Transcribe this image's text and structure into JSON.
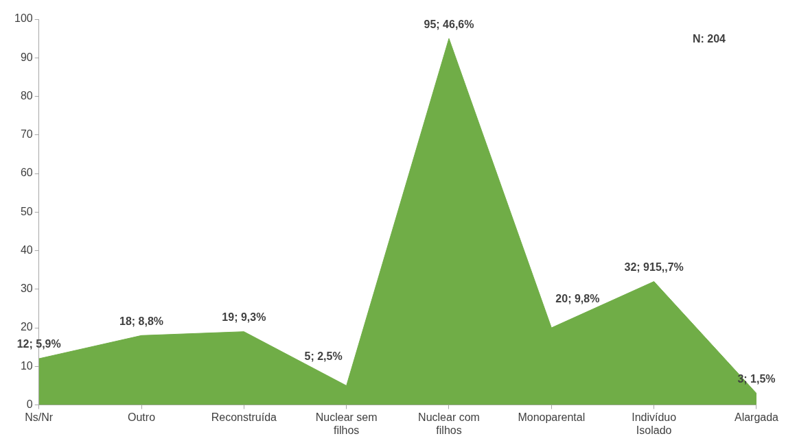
{
  "chart_data": {
    "type": "area",
    "categories": [
      "Ns/Nr",
      "Outro",
      "Reconstruída",
      "Nuclear sem filhos",
      "Nuclear com filhos",
      "Monoparental",
      "Indivíduo Isolado",
      "Alargada"
    ],
    "values": [
      12,
      18,
      19,
      5,
      95,
      20,
      32,
      3
    ],
    "value_labels": [
      "12; 5,9%",
      "18; 8,8%",
      "19; 9,3%",
      "5; 2,5%",
      "95; 46,6%",
      "20; 9,8%",
      "32; 915,,7%",
      "3; 1,5%"
    ],
    "color": "#70ad47",
    "ylim": [
      0,
      100
    ],
    "yticks": [
      0,
      10,
      20,
      30,
      40,
      50,
      60,
      70,
      80,
      90,
      100
    ],
    "grid": false,
    "legend": false,
    "annotations": [
      "N: 204"
    ]
  }
}
